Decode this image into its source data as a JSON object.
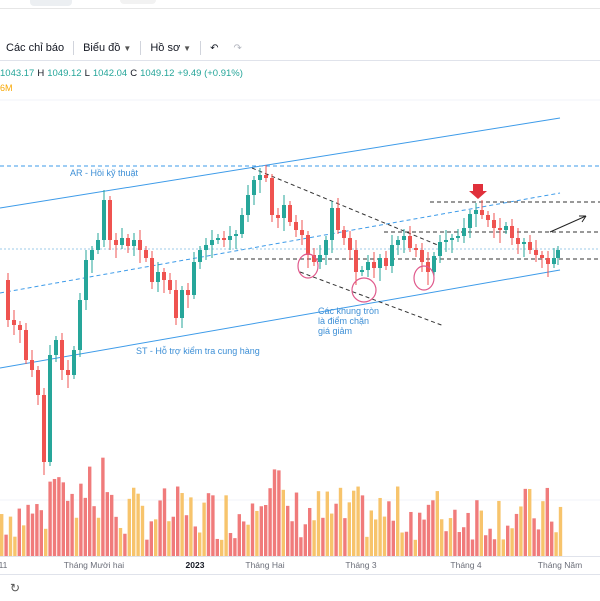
{
  "toolbar": {
    "indicators_label": "Các chỉ báo",
    "chart_label": "Biểu đồ",
    "profile_label": "Hồ sơ",
    "undo_icon": "undo-icon",
    "redo_icon": "redo-icon"
  },
  "legend": {
    "open": "1043.17",
    "high_prefix": "H",
    "high": "1049.12",
    "low_prefix": "L",
    "low": "1042.04",
    "close_prefix": "C",
    "close": "1049.12",
    "change": "+9.49 (+0.91%)",
    "volume_suffix": "6M"
  },
  "annotations": {
    "resistance": "AR - Hồi kỹ thuật",
    "support": "ST - Hỗ trợ kiểm tra cung hàng",
    "circles_line1": "Các khung tròn",
    "circles_line2": "là điểm chặn",
    "circles_line3": "giá giảm"
  },
  "x_axis": {
    "label_0": "11",
    "label_1": "Tháng Mười hai",
    "label_2": "2023",
    "label_3": "Tháng Hai",
    "label_4": "Tháng 3",
    "label_5": "Tháng 4",
    "label_6": "Tháng Năm"
  },
  "colors": {
    "up": "#26a69a",
    "down": "#ef5350",
    "vol_up": "#f7c46c",
    "vol_down": "#f07b7b",
    "channel": "#3d9be9",
    "dashed": "#333333"
  }
}
